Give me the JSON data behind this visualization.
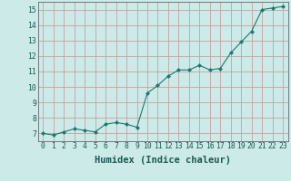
{
  "x": [
    0,
    1,
    2,
    3,
    4,
    5,
    6,
    7,
    8,
    9,
    10,
    11,
    12,
    13,
    14,
    15,
    16,
    17,
    18,
    19,
    20,
    21,
    22,
    23
  ],
  "y": [
    7.0,
    6.9,
    7.1,
    7.3,
    7.2,
    7.1,
    7.6,
    7.7,
    7.6,
    7.4,
    9.6,
    10.1,
    10.7,
    11.1,
    11.1,
    11.4,
    11.1,
    11.2,
    12.2,
    12.9,
    13.6,
    15.0,
    15.1,
    15.2
  ],
  "xlabel": "Humidex (Indice chaleur)",
  "ylim": [
    6.5,
    15.5
  ],
  "xlim": [
    -0.5,
    23.5
  ],
  "yticks": [
    7,
    8,
    9,
    10,
    11,
    12,
    13,
    14,
    15
  ],
  "xticks": [
    0,
    1,
    2,
    3,
    4,
    5,
    6,
    7,
    8,
    9,
    10,
    11,
    12,
    13,
    14,
    15,
    16,
    17,
    18,
    19,
    20,
    21,
    22,
    23
  ],
  "line_color": "#1a7a6e",
  "marker_color": "#1a7a6e",
  "bg_color": "#cceae7",
  "grid_color": "#c8a0a0",
  "axes_bg": "#cceae7",
  "tick_label_fontsize": 5.8,
  "xlabel_fontsize": 7.5,
  "spine_color": "#666666"
}
